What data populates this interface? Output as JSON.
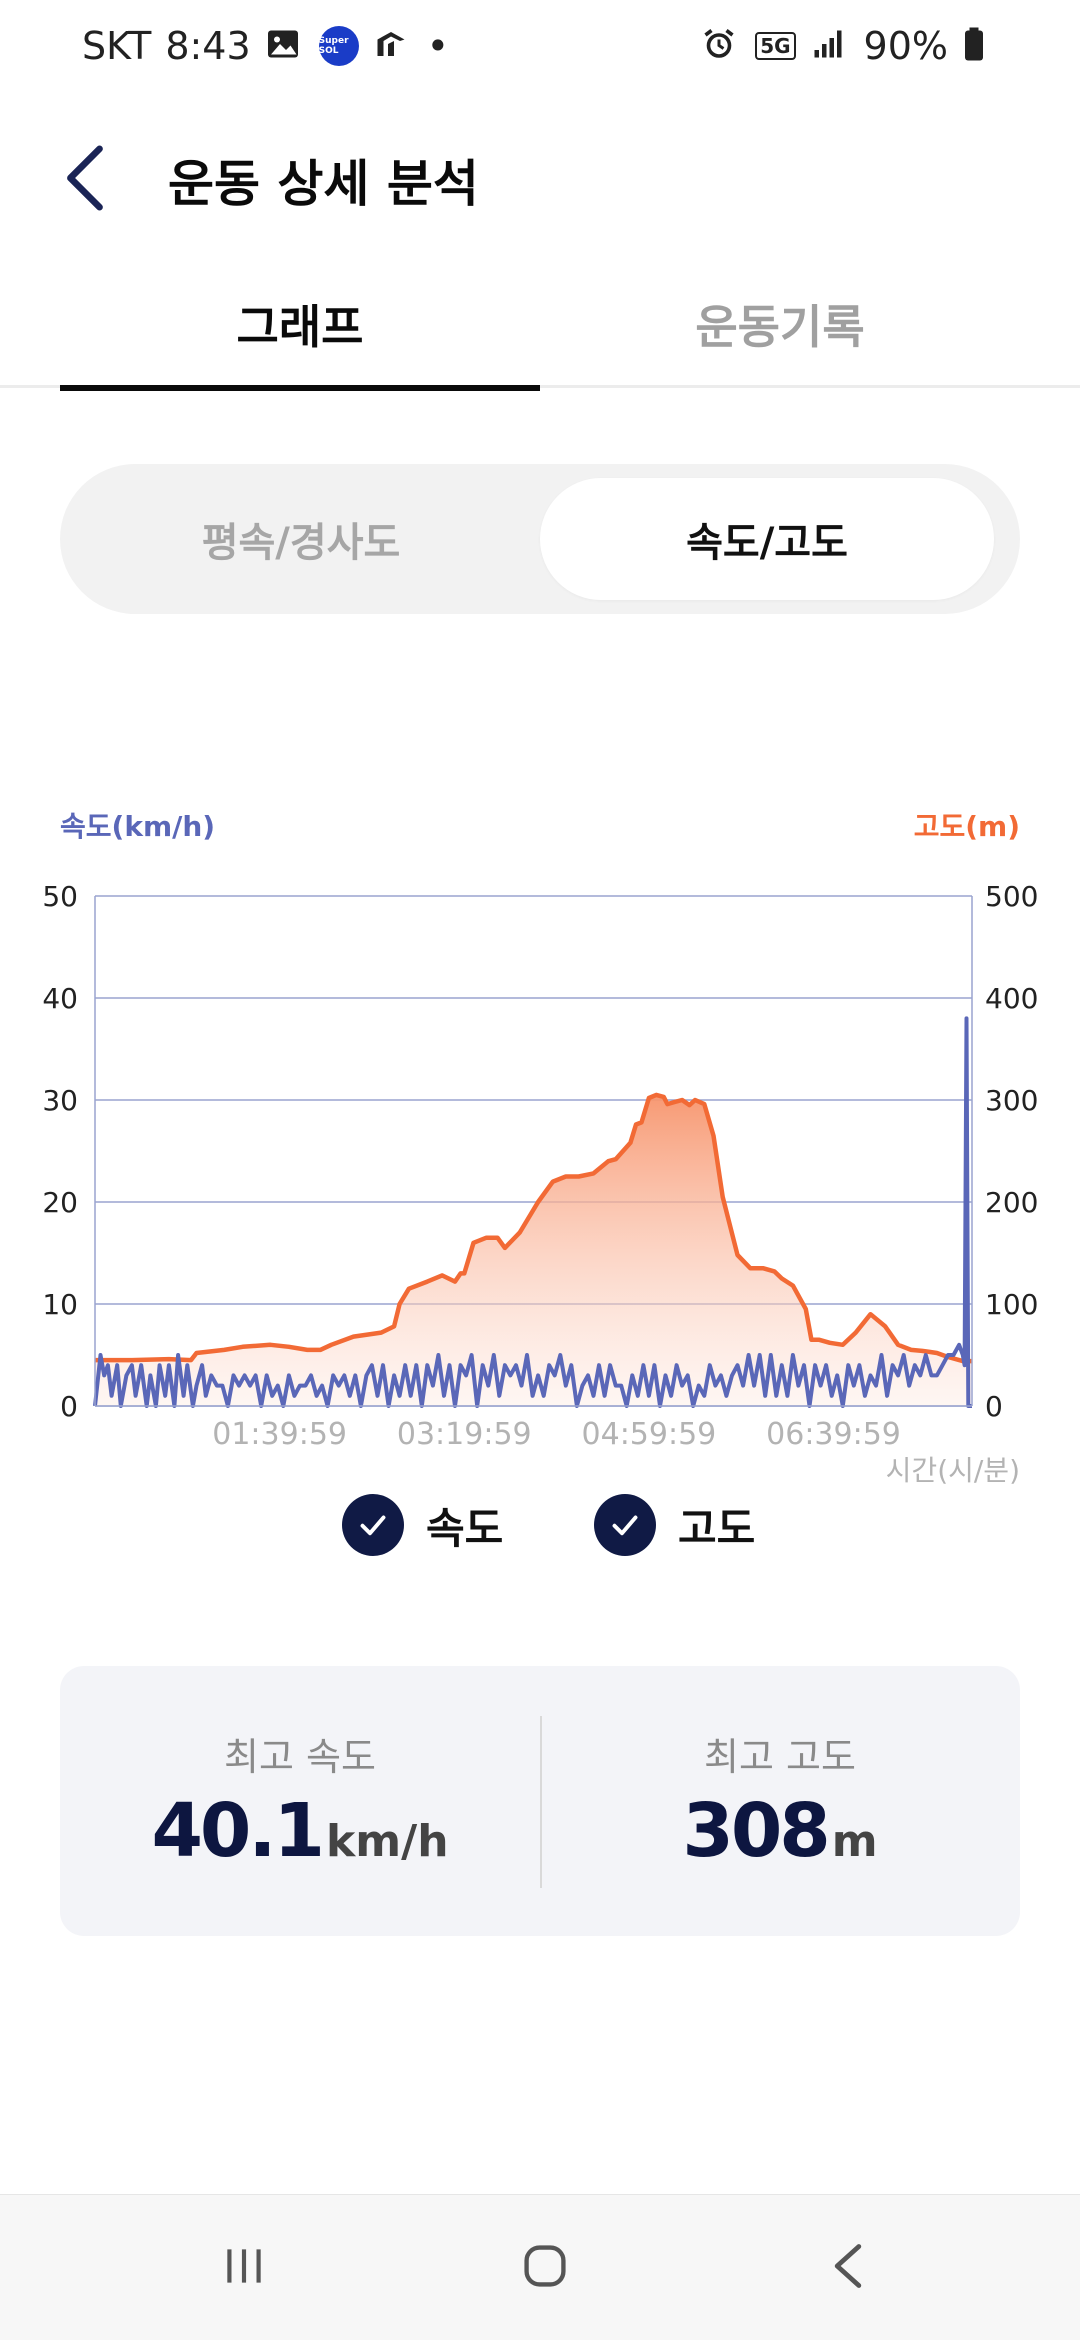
{
  "status_bar": {
    "carrier": "SKT",
    "time": "8:43",
    "notification_dot": "•",
    "network": "5G",
    "battery": "90%",
    "super_sol_label": "Super SOL"
  },
  "header": {
    "title": "운동 상세 분석"
  },
  "tabs": [
    {
      "label": "그래프",
      "active": true
    },
    {
      "label": "운동기록",
      "active": false
    }
  ],
  "segment": {
    "items": [
      {
        "label": "평속/경사도",
        "active": false
      },
      {
        "label": "속도/고도",
        "active": true
      }
    ]
  },
  "chart_data": {
    "type": "line",
    "left_axis_label": "속도(km/h)",
    "right_axis_label": "고도(m)",
    "x_axis_label": "시간(시/분)",
    "left_ylim": [
      0,
      50
    ],
    "right_ylim": [
      0,
      500
    ],
    "left_ticks": [
      "0",
      "10",
      "20",
      "30",
      "40",
      "50"
    ],
    "right_ticks": [
      "0",
      "100",
      "200",
      "300",
      "400",
      "500"
    ],
    "x_tick_labels": [
      "01:39:59",
      "03:19:59",
      "04:59:59",
      "06:39:59"
    ],
    "x_tick_positions": [
      100,
      200,
      300,
      400
    ],
    "x_max": 475,
    "grid": true,
    "colors": {
      "speed": "#5a67b8",
      "altitude": "#f26a35",
      "left_axis": "#5a67b8",
      "right_axis": "#f26a35"
    },
    "series": [
      {
        "name": "고도",
        "axis": "right",
        "x": [
          0,
          20,
          40,
          52,
          55,
          70,
          80,
          95,
          105,
          115,
          122,
          128,
          140,
          155,
          162,
          165,
          170,
          180,
          188,
          195,
          198,
          200,
          205,
          212,
          218,
          222,
          230,
          240,
          248,
          255,
          262,
          270,
          278,
          282,
          290,
          293,
          296,
          300,
          304,
          308,
          310,
          314,
          318,
          322,
          325,
          330,
          335,
          340,
          348,
          355,
          362,
          368,
          372,
          378,
          385,
          388,
          392,
          398,
          405,
          412,
          420,
          428,
          435,
          442,
          448,
          452,
          456,
          462,
          470,
          475
        ],
        "values": [
          45,
          45,
          46,
          45,
          52,
          55,
          58,
          60,
          58,
          55,
          55,
          60,
          68,
          72,
          78,
          100,
          115,
          122,
          128,
          122,
          130,
          130,
          160,
          165,
          165,
          155,
          170,
          200,
          220,
          225,
          225,
          228,
          240,
          242,
          258,
          276,
          278,
          302,
          305,
          303,
          296,
          298,
          300,
          295,
          300,
          296,
          265,
          205,
          148,
          135,
          135,
          132,
          125,
          118,
          95,
          65,
          65,
          62,
          60,
          72,
          90,
          78,
          60,
          55,
          54,
          53,
          52,
          48,
          44,
          44
        ]
      },
      {
        "name": "속도",
        "axis": "left",
        "x": [
          0,
          3,
          5,
          7,
          9,
          12,
          14,
          17,
          20,
          22,
          25,
          28,
          30,
          33,
          35,
          38,
          40,
          43,
          45,
          48,
          50,
          53,
          55,
          58,
          60,
          63,
          66,
          69,
          72,
          75,
          78,
          81,
          84,
          87,
          90,
          93,
          96,
          99,
          102,
          105,
          108,
          111,
          114,
          117,
          120,
          123,
          126,
          129,
          132,
          135,
          138,
          141,
          144,
          147,
          150,
          153,
          156,
          159,
          162,
          165,
          168,
          171,
          174,
          177,
          180,
          183,
          186,
          189,
          192,
          195,
          198,
          201,
          204,
          207,
          210,
          213,
          216,
          219,
          222,
          225,
          228,
          231,
          234,
          237,
          240,
          243,
          246,
          249,
          252,
          255,
          258,
          261,
          264,
          267,
          270,
          273,
          276,
          279,
          282,
          285,
          288,
          291,
          294,
          297,
          300,
          303,
          306,
          309,
          312,
          315,
          318,
          321,
          324,
          327,
          330,
          333,
          336,
          339,
          342,
          345,
          348,
          351,
          354,
          357,
          360,
          363,
          366,
          369,
          372,
          375,
          378,
          381,
          384,
          387,
          390,
          393,
          396,
          399,
          402,
          405,
          408,
          411,
          414,
          417,
          420,
          423,
          426,
          429,
          432,
          435,
          438,
          441,
          444,
          447,
          450,
          453,
          456,
          459,
          462,
          465,
          468,
          470,
          471,
          472,
          473,
          475
        ],
        "values": [
          0,
          5,
          3,
          4,
          1,
          4,
          0,
          3,
          4,
          1,
          4,
          0,
          3,
          0,
          4,
          1,
          4,
          0,
          5,
          1,
          4,
          0,
          2,
          4,
          1,
          3,
          2,
          2,
          0,
          3,
          2,
          3,
          2,
          3,
          0,
          3,
          1,
          2,
          0,
          3,
          1,
          2,
          2,
          3,
          1,
          2,
          0,
          3,
          2,
          3,
          1,
          3,
          0,
          3,
          4,
          1,
          4,
          0,
          3,
          1,
          4,
          1,
          4,
          0,
          4,
          2,
          5,
          1,
          4,
          0,
          4,
          3,
          5,
          0,
          4,
          2,
          5,
          1,
          4,
          3,
          4,
          2,
          5,
          1,
          3,
          1,
          4,
          3,
          5,
          2,
          4,
          0,
          2,
          3,
          1,
          4,
          1,
          4,
          2,
          2,
          0,
          3,
          1,
          4,
          1,
          4,
          0,
          3,
          1,
          4,
          2,
          3,
          0,
          2,
          1,
          4,
          2,
          3,
          1,
          3,
          4,
          2,
          5,
          2,
          5,
          1,
          5,
          1,
          4,
          1,
          5,
          2,
          4,
          0,
          4,
          2,
          4,
          1,
          3,
          0,
          4,
          2,
          4,
          1,
          3,
          2,
          5,
          1,
          4,
          3,
          5,
          2,
          4,
          3,
          5,
          3,
          3,
          4,
          5,
          5,
          6,
          5,
          4,
          38,
          0,
          0
        ]
      }
    ]
  },
  "legend": [
    {
      "label": "속도",
      "checked": true
    },
    {
      "label": "고도",
      "checked": true
    }
  ],
  "stats": {
    "max_speed": {
      "label": "최고 속도",
      "value": "40.1",
      "unit": "km/h"
    },
    "max_altitude": {
      "label": "최고 고도",
      "value": "308",
      "unit": "m"
    }
  },
  "icons": {
    "back": "chevron-left-icon",
    "check": "check-icon",
    "nav_recent": "recent-apps-icon",
    "nav_home": "home-icon",
    "nav_back": "nav-back-icon"
  }
}
